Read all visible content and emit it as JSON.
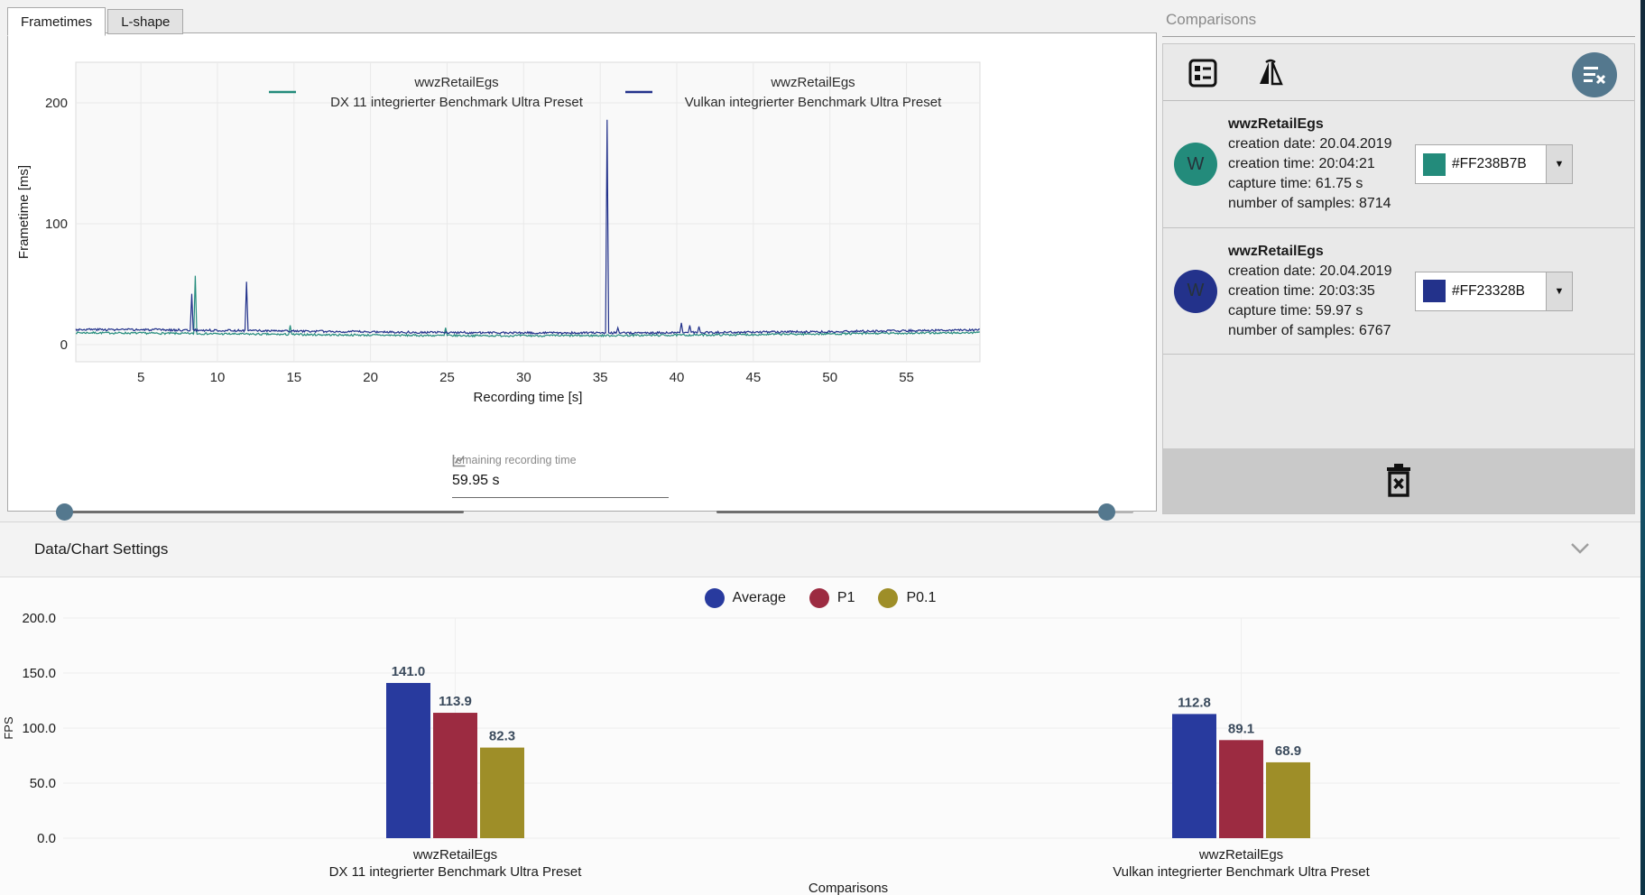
{
  "tabs": [
    {
      "label": "Frametimes",
      "active": true
    },
    {
      "label": "L-shape",
      "active": false
    }
  ],
  "controls": {
    "remaining_label": "remaining recording time",
    "remaining_value": "59.95 s",
    "slider_color": "#54788E"
  },
  "comparisons_panel": {
    "title": "Comparisons",
    "clear_button_color": "#54788E",
    "entries": [
      {
        "name": "wwzRetailEgs",
        "creation_date": "creation date: 20.04.2019",
        "creation_time": "creation time: 20:04:21",
        "capture_time": "capture time: 61.75 s",
        "samples": "number of samples: 8714",
        "avatar_letter": "W",
        "color_hex": "#FF238B7B",
        "swatch_color": "#238B7B"
      },
      {
        "name": "wwzRetailEgs",
        "creation_date": "creation date: 20.04.2019",
        "creation_time": "creation time: 20:03:35",
        "capture_time": "capture time: 59.97 s",
        "samples": "number of samples: 6767",
        "avatar_letter": "W",
        "color_hex": "#FF23328B",
        "swatch_color": "#23328B"
      }
    ]
  },
  "settings_bar": {
    "title": "Data/Chart Settings"
  },
  "chart_data": [
    {
      "type": "line",
      "title": "",
      "xlabel": "Recording time [s]",
      "ylabel": "Frametime [ms]",
      "xlim": [
        0.75,
        59.8
      ],
      "ylim": [
        0,
        233
      ],
      "x_ticks": [
        5,
        10,
        15,
        20,
        25,
        30,
        35,
        40,
        45,
        50,
        55
      ],
      "y_ticks": [
        0,
        100,
        200
      ],
      "grid": true,
      "legend_position": "top-inside",
      "series": [
        {
          "name_lines": [
            "wwzRetailEgs",
            "DX 11 integrierter Benchmark Ultra Preset"
          ],
          "color": "#238B7B",
          "baseline_ms": 8.8,
          "noise_ms": 1.6,
          "drift_ms": 1.4,
          "drift_phase": 2.2,
          "seed": 7,
          "spikes_s_ms": [
            [
              8.55,
              57
            ],
            [
              14.75,
              16
            ],
            [
              24.9,
              14
            ]
          ]
        },
        {
          "name_lines": [
            "wwzRetailEgs",
            "Vulkan integrierter Benchmark Ultra Preset"
          ],
          "color": "#23328B",
          "baseline_ms": 11.2,
          "noise_ms": 1.8,
          "drift_ms": 1.5,
          "drift_phase": 1.9,
          "seed": 3,
          "spikes_s_ms": [
            [
              8.32,
              42
            ],
            [
              11.9,
              52
            ],
            [
              35.45,
              186
            ],
            [
              36.15,
              14
            ],
            [
              40.3,
              18
            ],
            [
              40.85,
              16
            ],
            [
              41.45,
              15
            ]
          ]
        }
      ]
    },
    {
      "type": "bar",
      "categories": [
        [
          "wwzRetailEgs",
          "DX 11 integrierter Benchmark Ultra Preset"
        ],
        [
          "wwzRetailEgs",
          "Vulkan integrierter Benchmark Ultra Preset"
        ]
      ],
      "series": [
        {
          "name": "Average",
          "color": "#283A9E",
          "values": [
            141.0,
            112.8
          ]
        },
        {
          "name": "P1",
          "color": "#9C2B41",
          "values": [
            113.9,
            89.1
          ]
        },
        {
          "name": "P0.1",
          "color": "#9E8E28",
          "values": [
            82.3,
            68.9
          ]
        }
      ],
      "xlabel": "Comparisons",
      "ylabel": "FPS",
      "ylim": [
        0,
        200
      ],
      "y_ticks": [
        0,
        50,
        100,
        150,
        200
      ],
      "tick_decimals": 1,
      "value_decimals": 1,
      "value_label_color": "#3A4A5C",
      "grid": true,
      "legend_position": "top-center"
    }
  ]
}
